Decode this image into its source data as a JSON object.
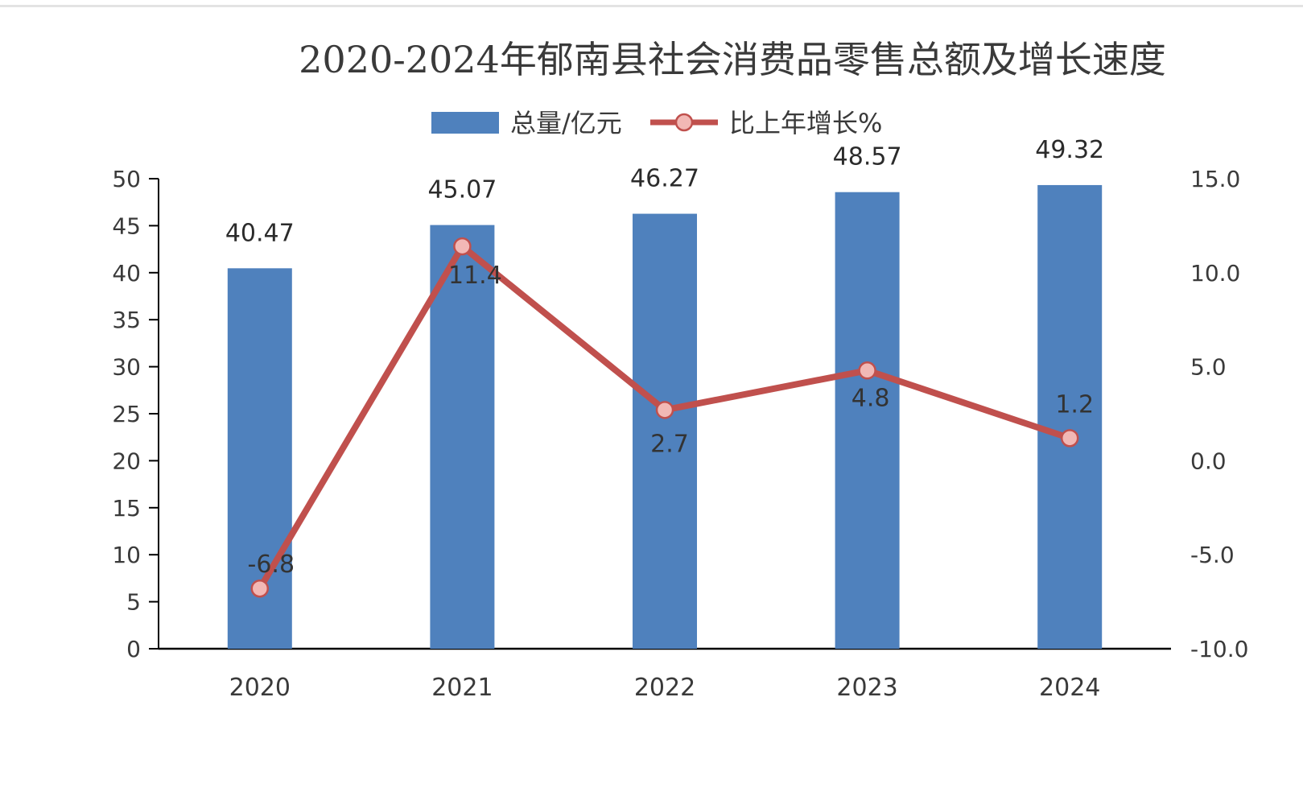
{
  "chart_data": {
    "type": "bar",
    "title": "2020-2024年郁南县社会消费品零售总额及增长速度",
    "categories": [
      "2020",
      "2021",
      "2022",
      "2023",
      "2024"
    ],
    "series": [
      {
        "name": "总量/亿元",
        "type": "bar",
        "axis": "left",
        "values": [
          40.47,
          45.07,
          46.27,
          48.57,
          49.32
        ],
        "labels": [
          "40.47",
          "45.07",
          "46.27",
          "48.57",
          "49.32"
        ],
        "color": "#4f81bd"
      },
      {
        "name": "比上年增长%",
        "type": "line",
        "axis": "right",
        "values": [
          -6.8,
          11.4,
          2.7,
          4.8,
          1.2
        ],
        "labels": [
          "-6.8",
          "11.4",
          "2.7",
          "4.8",
          "1.2"
        ],
        "color": "#c0504d",
        "marker_color": "#f2b8b5"
      }
    ],
    "y_left": {
      "ylim": [
        0,
        50
      ],
      "ticks": [
        "0",
        "5",
        "10",
        "15",
        "20",
        "25",
        "30",
        "35",
        "40",
        "45",
        "50"
      ]
    },
    "y_right": {
      "ylim": [
        -10,
        15
      ],
      "ticks": [
        "-10.0",
        "-5.0",
        "0.0",
        "5.0",
        "10.0",
        "15.0"
      ]
    },
    "legend_position": "top",
    "grid": false
  }
}
